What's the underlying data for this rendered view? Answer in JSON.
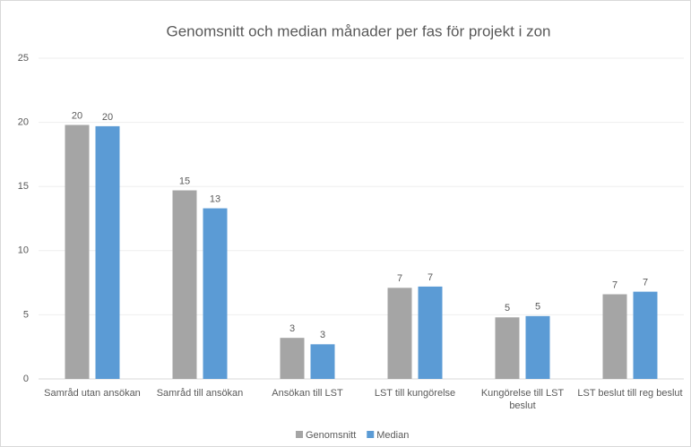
{
  "chart_data": {
    "type": "bar",
    "title": "Genomsnitt och median månader per fas för projekt i zon",
    "categories": [
      "Samråd utan ansökan",
      "Samråd till ansökan",
      "Ansökan till LST",
      "LST till kungörelse",
      "Kungörelse till LST beslut",
      "LST beslut till reg beslut"
    ],
    "series": [
      {
        "name": "Genomsnitt",
        "color": "#a5a5a5",
        "values": [
          19.8,
          14.7,
          3.2,
          7.1,
          4.8,
          6.6
        ],
        "value_labels": [
          20,
          15,
          3,
          7,
          5,
          7
        ]
      },
      {
        "name": "Median",
        "color": "#5b9bd5",
        "values": [
          19.7,
          13.3,
          2.7,
          7.2,
          4.9,
          6.8
        ],
        "value_labels": [
          20,
          13,
          3,
          7,
          5,
          7
        ]
      }
    ],
    "ylim": [
      0,
      25
    ],
    "yticks": [
      0,
      5,
      10,
      15,
      20,
      25
    ],
    "grid": true,
    "legend": "bottom"
  }
}
